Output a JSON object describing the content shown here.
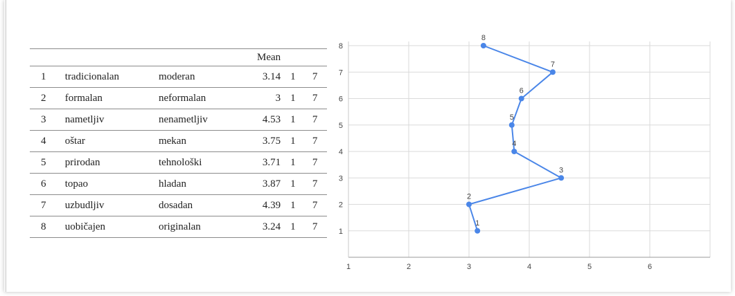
{
  "table": {
    "header": {
      "index": "",
      "left": "",
      "right": "",
      "mean": "Mean",
      "min": "",
      "max": ""
    },
    "rows": [
      {
        "index": "1",
        "left": "tradicionalan",
        "right": "moderan",
        "mean": "3.14",
        "min": "1",
        "max": "7"
      },
      {
        "index": "2",
        "left": "formalan",
        "right": "neformalan",
        "mean": "3",
        "min": "1",
        "max": "7"
      },
      {
        "index": "3",
        "left": "nametljiv",
        "right": "nenametljiv",
        "mean": "4.53",
        "min": "1",
        "max": "7"
      },
      {
        "index": "4",
        "left": "oštar",
        "right": "mekan",
        "mean": "3.75",
        "min": "1",
        "max": "7"
      },
      {
        "index": "5",
        "left": "prirodan",
        "right": "tehnološki",
        "mean": "3.71",
        "min": "1",
        "max": "7"
      },
      {
        "index": "6",
        "left": "topao",
        "right": "hladan",
        "mean": "3.87",
        "min": "1",
        "max": "7"
      },
      {
        "index": "7",
        "left": "uzbudljiv",
        "right": "dosadan",
        "mean": "4.39",
        "min": "1",
        "max": "7"
      },
      {
        "index": "8",
        "left": "uobičajen",
        "right": "originalan",
        "mean": "3.24",
        "min": "1",
        "max": "7"
      }
    ]
  },
  "chart_data": {
    "type": "line",
    "title": "",
    "xlabel": "",
    "ylabel": "",
    "x_ticks": [
      "1",
      "2",
      "3",
      "4",
      "5",
      "6"
    ],
    "y_ticks": [
      "1",
      "2",
      "3",
      "4",
      "5",
      "6",
      "7",
      "8"
    ],
    "xlim": [
      1,
      7
    ],
    "ylim": [
      0,
      8
    ],
    "grid": true,
    "line_color": "#4a86e8",
    "points": [
      {
        "label": "1",
        "x": 3.14,
        "y": 1
      },
      {
        "label": "2",
        "x": 3,
        "y": 2
      },
      {
        "label": "3",
        "x": 4.53,
        "y": 3
      },
      {
        "label": "4",
        "x": 3.75,
        "y": 4
      },
      {
        "label": "5",
        "x": 3.71,
        "y": 5
      },
      {
        "label": "6",
        "x": 3.87,
        "y": 6
      },
      {
        "label": "7",
        "x": 4.39,
        "y": 7
      },
      {
        "label": "8",
        "x": 3.24,
        "y": 8
      }
    ]
  }
}
